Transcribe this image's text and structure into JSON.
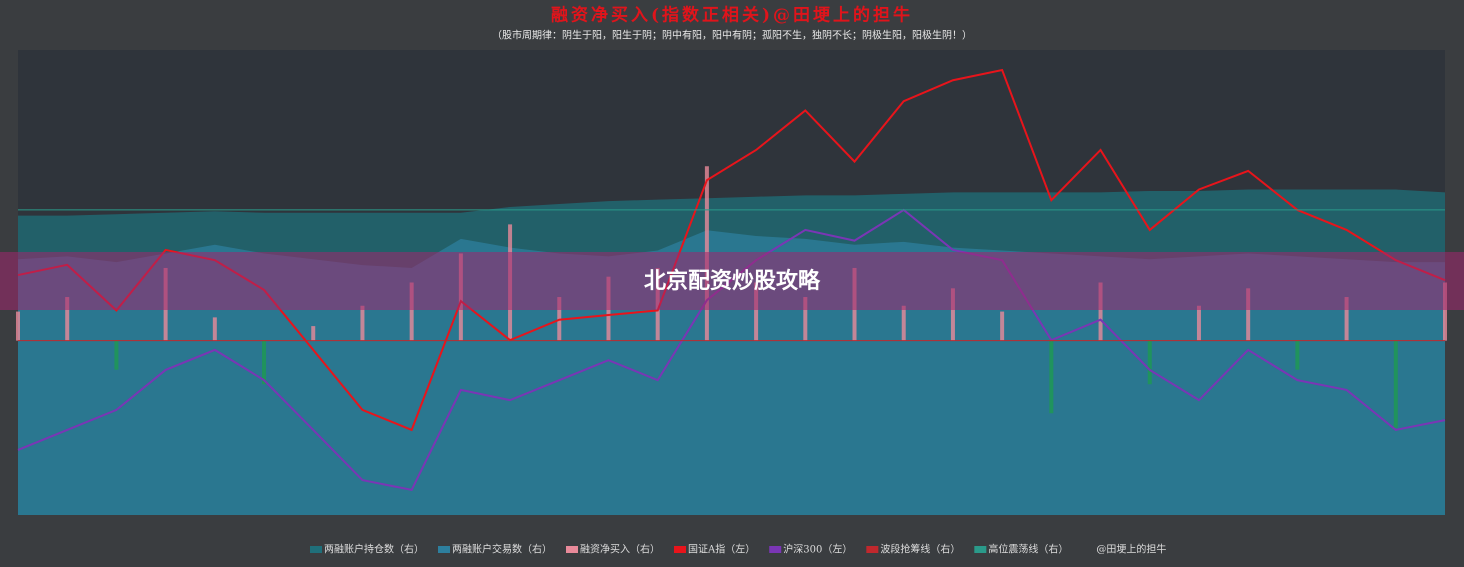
{
  "chart_data": {
    "type": "line",
    "title": "融资净买入(指数正相关)@田埂上的担牛",
    "subtitle": "（股市周期律：阴生于阳，阳生于阴；阴中有阳，阳中有阴；孤阳不生，独阴不长；阴极生阳，阳极生阴！）",
    "overlay_text": "北京配资炒股攻略",
    "categories": [
      null,
      null,
      null,
      null,
      null,
      null,
      null,
      null,
      null,
      null,
      null,
      null,
      null,
      null,
      null,
      null,
      null,
      null,
      null,
      null,
      null,
      null,
      null,
      null,
      null,
      null,
      null,
      null,
      null,
      null
    ],
    "ylim": [
      0,
      100
    ],
    "y2lim": [
      -60,
      100
    ],
    "series": [
      {
        "name": "两融账户持仓数（右）",
        "kind": "area",
        "axis": "y2",
        "color": "#1f6f7a",
        "values": [
          43,
          43,
          43.5,
          44,
          44.5,
          44,
          44,
          44,
          44,
          44,
          46,
          47,
          48,
          48.5,
          49,
          49.5,
          50,
          50,
          50.5,
          51,
          51,
          51,
          51,
          51.5,
          51.5,
          52,
          52,
          52,
          52,
          51
        ]
      },
      {
        "name": "两融账户交易数（右）",
        "kind": "area",
        "axis": "y2",
        "color": "#2d7f9e",
        "values": [
          28,
          29,
          27,
          30,
          33,
          30,
          28,
          26,
          25,
          35,
          32,
          30,
          29,
          31,
          38,
          36,
          35,
          33,
          34,
          32,
          31,
          30,
          29,
          28,
          29,
          30,
          29,
          28,
          27,
          27
        ]
      },
      {
        "name": "融资净买入（右）",
        "kind": "bar",
        "axis": "y2",
        "color": "#e88a9a",
        "negative_color": "#1e9a50",
        "values": [
          10,
          15,
          -10,
          25,
          8,
          -15,
          5,
          12,
          20,
          30,
          40,
          15,
          22,
          25,
          60,
          20,
          15,
          25,
          12,
          18,
          10,
          -25,
          20,
          -15,
          12,
          18,
          -10,
          15,
          -30,
          20
        ]
      },
      {
        "name": "国证A指（左）",
        "kind": "line",
        "color": "#e8141b",
        "values": [
          51.6,
          53.8,
          44,
          57,
          54.8,
          48.4,
          35.5,
          22.6,
          18.3,
          46,
          37.6,
          42,
          43,
          44,
          72,
          78.5,
          87,
          76,
          89,
          93.5,
          95.7,
          67.7,
          78.5,
          61.3,
          70,
          74,
          65.6,
          61.3,
          54.8,
          50.5
        ]
      },
      {
        "name": "沪深300（左）",
        "kind": "line",
        "color": "#7a36b5",
        "values": [
          14,
          18.3,
          22.6,
          31.2,
          35.5,
          29,
          18.3,
          7.5,
          5.4,
          26.9,
          24.7,
          29,
          33.3,
          29,
          46.2,
          54.8,
          61.3,
          59,
          65.6,
          57,
          54.8,
          37.6,
          42,
          31.2,
          24.7,
          35.5,
          29,
          26.9,
          18.3,
          20.4
        ]
      },
      {
        "name": "波段抢筹线（右）",
        "kind": "line",
        "axis": "y2",
        "color": "#c0282d",
        "values": [
          0,
          0,
          0,
          0,
          0,
          0,
          0,
          0,
          0,
          0,
          0,
          0,
          0,
          0,
          0,
          0,
          0,
          0,
          0,
          0,
          0,
          0,
          0,
          0,
          0,
          0,
          0,
          0,
          0,
          0
        ]
      },
      {
        "name": "高位震荡线（右）",
        "kind": "line",
        "axis": "y2",
        "color": "#2a9a8a",
        "values": [
          45,
          45,
          45,
          45,
          45,
          45,
          45,
          45,
          45,
          45,
          45,
          45,
          45,
          45,
          45,
          45,
          45,
          45,
          45,
          45,
          45,
          45,
          45,
          45,
          45,
          45,
          45,
          45,
          45,
          45
        ]
      }
    ],
    "legend_extra": [
      "@田埂上的担牛"
    ]
  }
}
